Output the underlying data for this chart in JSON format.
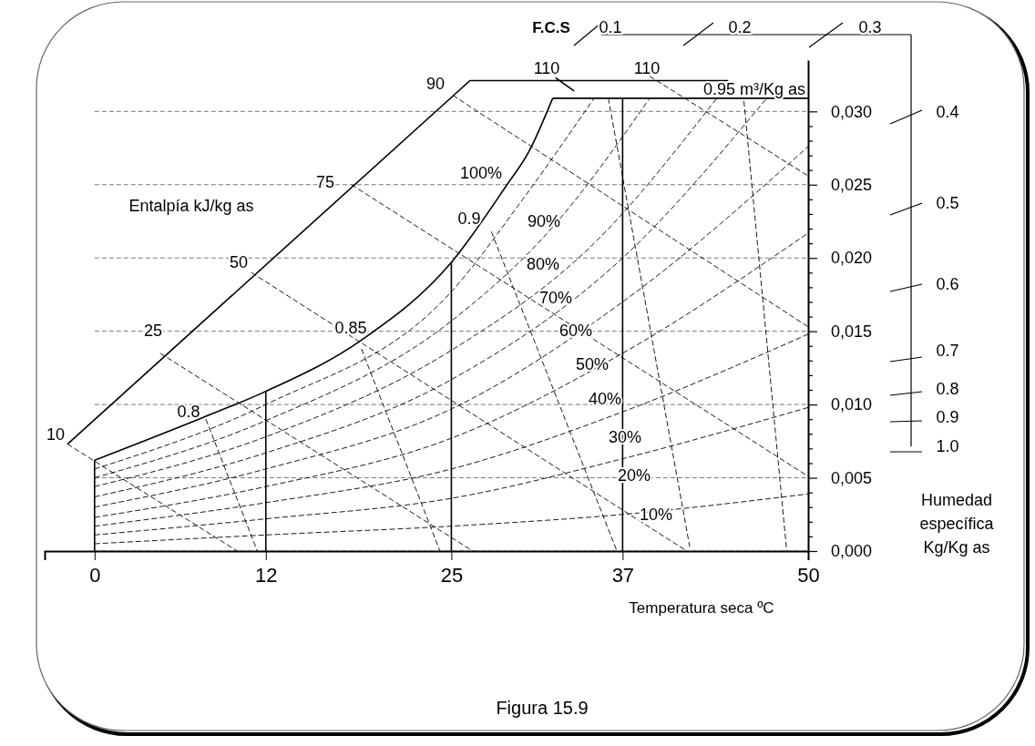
{
  "chart_data": {
    "type": "line",
    "xlabel": "Temperatura seca ºC",
    "ylabel": "Humedad específica Kg/Kg as",
    "xlim": [
      -3.5,
      50
    ],
    "xticks": [
      0,
      12,
      25,
      37,
      50
    ],
    "ylim": [
      0,
      0.0335
    ],
    "yticks": [
      {
        "value": 0,
        "label": "0,000"
      },
      {
        "value": 0.001,
        "label": null
      },
      {
        "value": 0.002,
        "label": null
      },
      {
        "value": 0.003,
        "label": null
      },
      {
        "value": 0.004,
        "label": null
      },
      {
        "value": 0.005,
        "label": "0,005"
      },
      {
        "value": 0.006,
        "label": null
      },
      {
        "value": 0.007,
        "label": null
      },
      {
        "value": 0.008,
        "label": null
      },
      {
        "value": 0.009,
        "label": null
      },
      {
        "value": 0.01,
        "label": "0,010"
      },
      {
        "value": 0.011,
        "label": null
      },
      {
        "value": 0.012,
        "label": null
      },
      {
        "value": 0.013,
        "label": null
      },
      {
        "value": 0.014,
        "label": null
      },
      {
        "value": 0.015,
        "label": "0,015"
      },
      {
        "value": 0.016,
        "label": null
      },
      {
        "value": 0.017,
        "label": null
      },
      {
        "value": 0.018,
        "label": null
      },
      {
        "value": 0.019,
        "label": null
      },
      {
        "value": 0.02,
        "label": "0,020"
      },
      {
        "value": 0.021,
        "label": null
      },
      {
        "value": 0.022,
        "label": null
      },
      {
        "value": 0.023,
        "label": null
      },
      {
        "value": 0.024,
        "label": null
      },
      {
        "value": 0.025,
        "label": "0,025"
      },
      {
        "value": 0.026,
        "label": null
      },
      {
        "value": 0.027,
        "label": null
      },
      {
        "value": 0.028,
        "label": null
      },
      {
        "value": 0.029,
        "label": null
      },
      {
        "value": 0.03,
        "label": "0,030"
      }
    ],
    "grid": "y",
    "series": [
      {
        "type": "line",
        "color": "#000000",
        "line_style": "solid",
        "x": [
          0,
          7.3,
          12,
          18.7,
          25,
          28.9,
          30.4,
          32.1
        ],
        "values": [
          0.0062,
          0.009,
          0.0109,
          0.0144,
          0.0197,
          0.025,
          0.0272,
          0.0309
        ]
      },
      {
        "type": "line",
        "color": "#000000",
        "line_style": "dashed",
        "x": [
          0,
          12,
          25,
          30,
          35
        ],
        "values": [
          0.0056,
          0.01,
          0.0177,
          0.024,
          0.0309
        ]
      },
      {
        "type": "line",
        "color": "#000000",
        "line_style": "dashed",
        "x": [
          0,
          12,
          25,
          32,
          38.9
        ],
        "values": [
          0.005,
          0.0089,
          0.0157,
          0.022,
          0.0309
        ]
      },
      {
        "type": "line",
        "color": "#000000",
        "line_style": "dashed",
        "x": [
          0,
          12,
          25,
          35,
          43.6
        ],
        "values": [
          0.0044,
          0.0078,
          0.0137,
          0.021,
          0.0309
        ]
      },
      {
        "type": "line",
        "color": "#000000",
        "line_style": "dashed",
        "x": [
          0,
          12,
          25,
          37,
          47.1
        ],
        "values": [
          0.0037,
          0.0067,
          0.0117,
          0.02,
          0.0309
        ]
      },
      {
        "type": "line",
        "color": "#000000",
        "line_style": "dashed",
        "x": [
          0,
          12,
          25,
          37,
          50
        ],
        "values": [
          0.003,
          0.0056,
          0.0097,
          0.017,
          0.0276
        ]
      },
      {
        "type": "line",
        "color": "#000000",
        "line_style": "dashed",
        "x": [
          0,
          12,
          25,
          37,
          50
        ],
        "values": [
          0.0023,
          0.0044,
          0.0077,
          0.0135,
          0.0217
        ]
      },
      {
        "type": "line",
        "color": "#000000",
        "line_style": "dashed",
        "x": [
          0,
          12,
          25,
          37,
          50
        ],
        "values": [
          0.0017,
          0.0033,
          0.0056,
          0.0095,
          0.0148
        ]
      },
      {
        "type": "line",
        "color": "#000000",
        "line_style": "dashed",
        "x": [
          0,
          12,
          25,
          37,
          50
        ],
        "values": [
          0.0011,
          0.0022,
          0.0036,
          0.0063,
          0.0098
        ]
      },
      {
        "type": "line",
        "color": "#000000",
        "line_style": "dashed",
        "x": [
          0,
          12,
          25,
          37,
          50
        ],
        "values": [
          0.0005,
          0.0011,
          0.0017,
          0.0025,
          0.0039
        ]
      },
      {
        "type": "line",
        "color": "#000000",
        "line_style": "solid",
        "x": [
          -1.9,
          26.3,
          44.4
        ],
        "values": [
          0.0073,
          0.0321,
          0.0321
        ]
      },
      {
        "type": "line",
        "color": "#000000",
        "line_style": "dashed",
        "x": [
          -1.9,
          10
        ],
        "values": [
          0.0073,
          0
        ]
      },
      {
        "type": "line",
        "color": "#000000",
        "line_style": "dashed",
        "x": [
          4.6,
          26.5
        ],
        "values": [
          0.0135,
          0
        ]
      },
      {
        "type": "line",
        "color": "#000000",
        "line_style": "dashed",
        "x": [
          11,
          41.5
        ],
        "values": [
          0.019,
          0
        ]
      },
      {
        "type": "line",
        "color": "#000000",
        "line_style": "dashed",
        "x": [
          18,
          50
        ],
        "values": [
          0.025,
          0.0051
        ]
      },
      {
        "type": "line",
        "color": "#000000",
        "line_style": "dashed",
        "x": [
          25.1,
          50
        ],
        "values": [
          0.0311,
          0.0153
        ]
      },
      {
        "type": "line",
        "color": "#000000",
        "line_style": "dashed",
        "x": [
          38.9,
          50
        ],
        "values": [
          0.0324,
          0.0256
        ]
      },
      {
        "type": "line",
        "color": "#000000",
        "line_style": "solid",
        "x": [
          32.3,
          33.6
        ],
        "values": [
          0.0323,
          0.0314
        ]
      },
      {
        "type": "line",
        "color": "#000000",
        "line_style": "dashed",
        "x": [
          7.8,
          11.4
        ],
        "values": [
          0.009,
          0
        ]
      },
      {
        "type": "line",
        "color": "#000000",
        "line_style": "dashed",
        "x": [
          18.7,
          24.2
        ],
        "values": [
          0.0138,
          0
        ]
      },
      {
        "type": "line",
        "color": "#000000",
        "line_style": "dashed",
        "x": [
          27.8,
          36.6
        ],
        "values": [
          0.0218,
          0
        ]
      },
      {
        "type": "line",
        "color": "#000000",
        "line_style": "dashed",
        "x": [
          36,
          41.7
        ],
        "values": [
          0.0309,
          0.0003
        ]
      },
      {
        "type": "line",
        "color": "#000000",
        "line_style": "dashed",
        "x": [
          45.5,
          48.5
        ],
        "values": [
          0.0307,
          0
        ]
      },
      {
        "type": "line",
        "color": "#000000",
        "line_style": "solid",
        "x": [
          0,
          0
        ],
        "values": [
          0,
          0.0062
        ]
      },
      {
        "type": "line",
        "color": "#000000",
        "line_style": "solid",
        "x": [
          12,
          12
        ],
        "values": [
          0,
          0.0109
        ]
      },
      {
        "type": "line",
        "color": "#000000",
        "line_style": "solid",
        "x": [
          25,
          25
        ],
        "values": [
          0,
          0.0197
        ]
      },
      {
        "type": "line",
        "color": "#000000",
        "line_style": "solid",
        "x": [
          37,
          37
        ],
        "values": [
          0,
          0.0309
        ]
      },
      {
        "type": "line",
        "color": "#000000",
        "line_style": "solid",
        "x": [
          32.1,
          50
        ],
        "values": [
          0.0309,
          0.0309
        ]
      }
    ],
    "annotations": [
      "100%",
      "90%",
      "80%",
      "70%",
      "60%",
      "50%",
      "40%",
      "30%",
      "20%",
      "10%",
      "10",
      "25",
      "50",
      "75",
      "90",
      "110",
      "110",
      "0.95 m³/Kg as",
      "0.9",
      "0.85",
      "0.8",
      "Entalpía kJ/kg as",
      "F.C.S",
      "0.1",
      "0.2",
      "0.3",
      "0.4",
      "0.5",
      "0.6",
      "0.7",
      "0.8",
      "0.9",
      "1.0",
      "Figura 15.9"
    ]
  }
}
